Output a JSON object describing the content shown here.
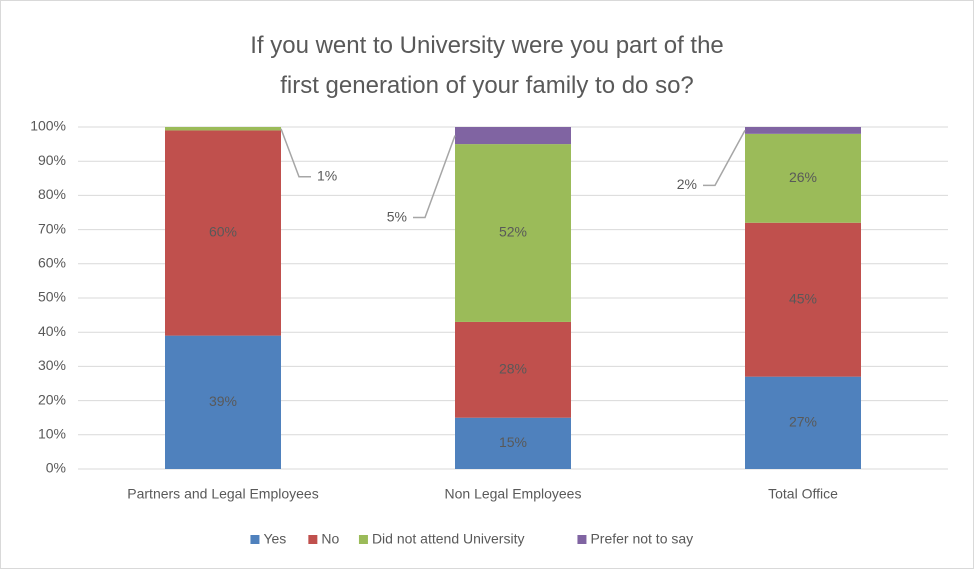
{
  "chart_data": {
    "type": "stacked_bar",
    "title": "If you went to University were you part of the first generation of your family to do so?",
    "categories": [
      "Partners and Legal Employees",
      "Non Legal Employees",
      "Total Office"
    ],
    "series": [
      {
        "name": "Yes",
        "color": "#4f81bd",
        "values": [
          39,
          15,
          27
        ],
        "value_labels": [
          "39%",
          "15%",
          "27%"
        ]
      },
      {
        "name": "No",
        "color": "#c0504d",
        "values": [
          60,
          28,
          45
        ],
        "value_labels": [
          "60%",
          "28%",
          "45%"
        ]
      },
      {
        "name": "Did not attend University",
        "color": "#9bbb59",
        "values": [
          1,
          52,
          26
        ],
        "value_labels": [
          "1%",
          "52%",
          "26%"
        ]
      },
      {
        "name": "Prefer not to say",
        "color": "#8064a2",
        "values": [
          0,
          5,
          2
        ],
        "value_labels": [
          null,
          "5%",
          "2%"
        ]
      }
    ],
    "ylim": [
      0,
      100
    ],
    "yticks": [
      {
        "value": 0,
        "label": "0%"
      },
      {
        "value": 10,
        "label": "10%"
      },
      {
        "value": 20,
        "label": "20%"
      },
      {
        "value": 30,
        "label": "30%"
      },
      {
        "value": 40,
        "label": "40%"
      },
      {
        "value": 50,
        "label": "50%"
      },
      {
        "value": 60,
        "label": "60%"
      },
      {
        "value": 70,
        "label": "70%"
      },
      {
        "value": 80,
        "label": "80%"
      },
      {
        "value": 90,
        "label": "90%"
      },
      {
        "value": 100,
        "label": "100%"
      }
    ],
    "grid": true,
    "legend": "bottom"
  }
}
